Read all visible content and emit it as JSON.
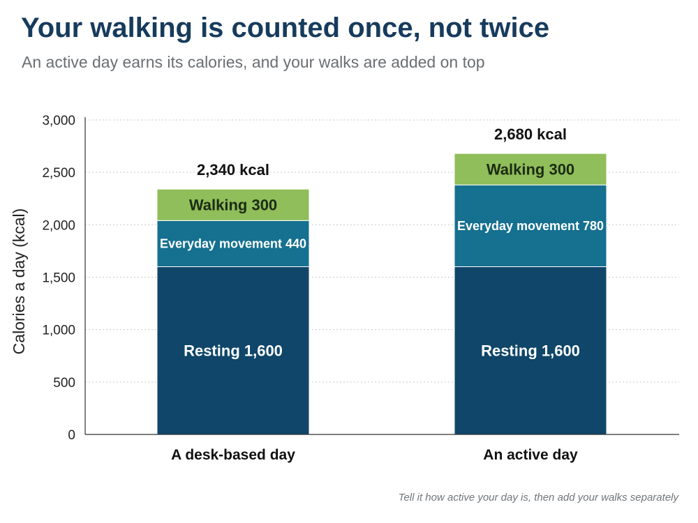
{
  "header": {
    "title": "Your walking is counted once, not twice",
    "subtitle": "An active day earns its calories, and your walks are added on top"
  },
  "footnote": "Tell it how active your day is, then add your walks separately",
  "chart_data": {
    "type": "bar",
    "stacked": true,
    "categories": [
      "A desk-based day",
      "An active day"
    ],
    "series": [
      {
        "name": "Resting",
        "values": [
          1600,
          1600
        ],
        "color": "#0f4669",
        "label_color": "#ffffff",
        "labels": [
          "Resting 1,600",
          "Resting 1,600"
        ]
      },
      {
        "name": "Everyday movement",
        "values": [
          440,
          780
        ],
        "color": "#16708f",
        "label_color": "#ffffff",
        "labels": [
          "Everyday movement 440",
          "Everyday movement 780"
        ]
      },
      {
        "name": "Walking",
        "values": [
          300,
          300
        ],
        "color": "#8fbe5a",
        "label_color": "#1c2b14",
        "labels": [
          "Walking 300",
          "Walking 300"
        ]
      }
    ],
    "totals": [
      "2,340 kcal",
      "2,680 kcal"
    ],
    "xlabel": "",
    "ylabel": "Calories a day (kcal)",
    "ylim": [
      0,
      3000
    ],
    "yticks": [
      0,
      500,
      1000,
      1500,
      2000,
      2500,
      3000
    ],
    "ytick_labels": [
      "0",
      "500",
      "1,000",
      "1,500",
      "2,000",
      "2,500",
      "3,000"
    ],
    "grid": true
  }
}
